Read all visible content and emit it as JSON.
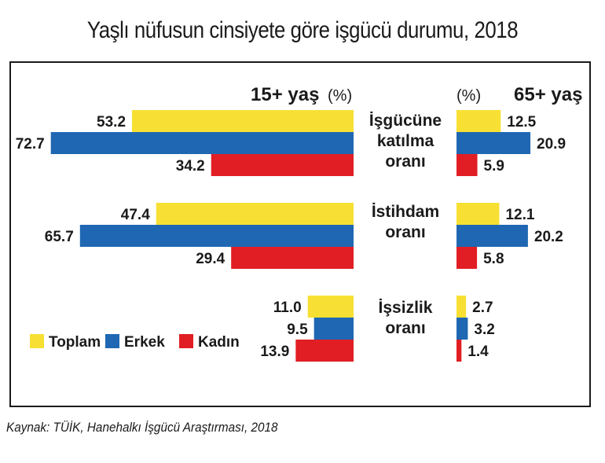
{
  "title": "Yaşlı nüfusun cinsiyete göre işgücü durumu, 2018",
  "source": "Kaynak: TÜİK, Hanehalkı İşgücü Araştırması, 2018",
  "colors": {
    "Toplam": "#f7e033",
    "Erkek": "#1f67b3",
    "Kadın": "#e01e24"
  },
  "chart_data": [
    {
      "type": "bar",
      "orientation": "horizontal",
      "title": "15+ yaş",
      "unit_label": "(%)",
      "categories": [
        "İşgücüne katılma oranı",
        "İstihdam oranı",
        "İşsizlik oranı"
      ],
      "category_label_lines": [
        [
          "İşgücüne",
          "katılma",
          "oranı"
        ],
        [
          "İstihdam",
          "oranı"
        ],
        [
          "İşsizlik",
          "oranı"
        ]
      ],
      "series": [
        {
          "name": "Toplam",
          "values": [
            53.2,
            47.4,
            11.0
          ],
          "labels": [
            "53.2",
            "47.4",
            "11.0"
          ]
        },
        {
          "name": "Erkek",
          "values": [
            72.7,
            65.7,
            9.5
          ],
          "labels": [
            "72.7",
            "65.7",
            "9.5"
          ]
        },
        {
          "name": "Kadın",
          "values": [
            34.2,
            29.4,
            13.9
          ],
          "labels": [
            "34.2",
            "29.4",
            "13.9"
          ]
        }
      ]
    },
    {
      "type": "bar",
      "orientation": "horizontal",
      "title": "65+ yaş",
      "unit_label": "(%)",
      "categories": [
        "İşgücüne katılma oranı",
        "İstihdam oranı",
        "İşsizlik oranı"
      ],
      "series": [
        {
          "name": "Toplam",
          "values": [
            12.5,
            12.1,
            2.7
          ],
          "labels": [
            "12.5",
            "12.1",
            "2.7"
          ]
        },
        {
          "name": "Erkek",
          "values": [
            20.9,
            20.2,
            3.2
          ],
          "labels": [
            "20.9",
            "20.2",
            "3.2"
          ]
        },
        {
          "name": "Kadın",
          "values": [
            5.9,
            5.8,
            1.4
          ],
          "labels": [
            "5.9",
            "5.8",
            "1.4"
          ]
        }
      ]
    }
  ],
  "legend": [
    "Toplam",
    "Erkek",
    "Kadın"
  ]
}
